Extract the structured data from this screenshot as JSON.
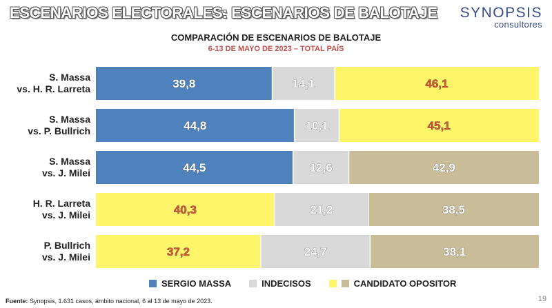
{
  "header": {
    "title": "ESCENARIOS ELECTORALES: ESCENARIOS DE BALOTAJE",
    "logo_name": "SYNOPSIS",
    "logo_sub": "consultores"
  },
  "footer": {
    "source_label": "Fuente:",
    "source_text": " Synopsis, 1.631 casos, ámbito nacional, 6 al 13 de mayo de 2023.",
    "page_number": "19"
  },
  "colors": {
    "massa": "#4f81bd",
    "indecisos": "#d9d9d9",
    "yellow": "#fff56b",
    "khaki": "#c8bd98",
    "yellow_text": "#d15a2e"
  },
  "chart_data": {
    "type": "bar",
    "orientation": "horizontal",
    "stacked": true,
    "title": "COMPARACIÓN DE ESCENARIOS DE BALOTAJE",
    "subtitle": "6-13 DE MAYO DE 2023 – TOTAL PAÍS",
    "xlim": [
      0,
      100
    ],
    "legend": [
      {
        "label": "SERGIO MASSA",
        "color": "#4f81bd"
      },
      {
        "label": "INDECISOS",
        "color": "#d9d9d9"
      },
      {
        "label": "CANDIDATO OPOSITOR",
        "color": "#fff56b",
        "color2": "#c8bd98"
      }
    ],
    "rows": [
      {
        "label1": "S. Massa",
        "label2": "vs. H. R. Larreta",
        "segments": [
          {
            "value": 39.8,
            "display": "39,8",
            "color": "#4f81bd",
            "text": "#ffffff"
          },
          {
            "value": 14.1,
            "display": "14,1",
            "color": "#d9d9d9",
            "text": "#ffffff"
          },
          {
            "value": 46.1,
            "display": "46,1",
            "color": "#fff56b",
            "text": "#d15a2e"
          }
        ]
      },
      {
        "label1": "S. Massa",
        "label2": "vs. P. Bullrich",
        "segments": [
          {
            "value": 44.8,
            "display": "44,8",
            "color": "#4f81bd",
            "text": "#ffffff"
          },
          {
            "value": 10.1,
            "display": "10,1",
            "color": "#d9d9d9",
            "text": "#ffffff"
          },
          {
            "value": 45.1,
            "display": "45,1",
            "color": "#fff56b",
            "text": "#d15a2e"
          }
        ]
      },
      {
        "label1": "S. Massa",
        "label2": "vs. J. Milei",
        "segments": [
          {
            "value": 44.5,
            "display": "44,5",
            "color": "#4f81bd",
            "text": "#ffffff"
          },
          {
            "value": 12.6,
            "display": "12,6",
            "color": "#d9d9d9",
            "text": "#ffffff"
          },
          {
            "value": 42.9,
            "display": "42,9",
            "color": "#c8bd98",
            "text": "#ffffff"
          }
        ]
      },
      {
        "label1": "H. R. Larreta",
        "label2": "vs. J. Milei",
        "segments": [
          {
            "value": 40.3,
            "display": "40,3",
            "color": "#fff56b",
            "text": "#d15a2e"
          },
          {
            "value": 21.2,
            "display": "21,2",
            "color": "#d9d9d9",
            "text": "#ffffff"
          },
          {
            "value": 38.5,
            "display": "38,5",
            "color": "#c8bd98",
            "text": "#ffffff"
          }
        ]
      },
      {
        "label1": "P. Bullrich",
        "label2": "vs. J. Milei",
        "segments": [
          {
            "value": 37.2,
            "display": "37,2",
            "color": "#fff56b",
            "text": "#d15a2e"
          },
          {
            "value": 24.7,
            "display": "24,7",
            "color": "#d9d9d9",
            "text": "#ffffff"
          },
          {
            "value": 38.1,
            "display": "38,1",
            "color": "#c8bd98",
            "text": "#ffffff"
          }
        ]
      }
    ]
  }
}
